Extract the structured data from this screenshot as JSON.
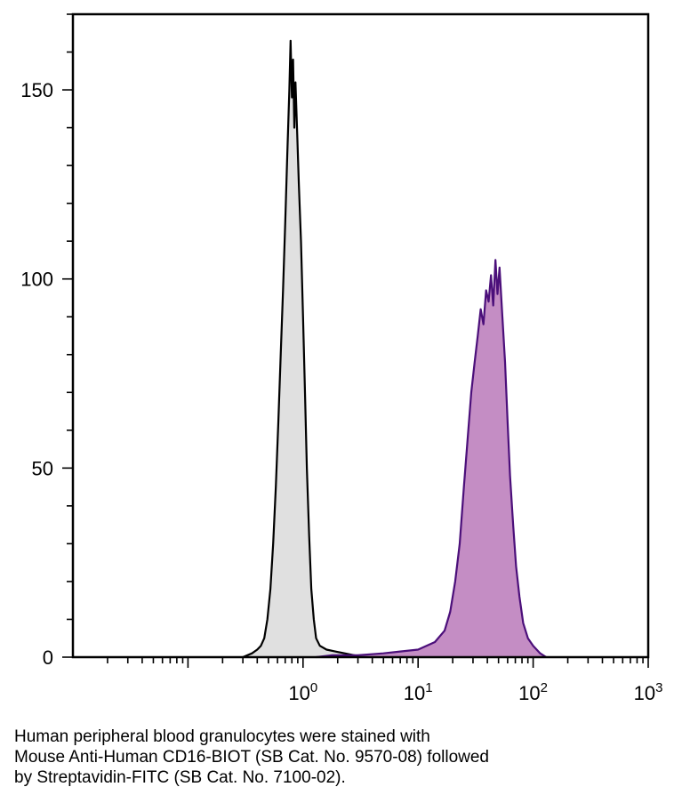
{
  "chart_data": {
    "type": "area",
    "title": "",
    "xlabel": "",
    "ylabel": "",
    "x_scale": "log",
    "xlim": [
      0.01,
      1000
    ],
    "ylim": [
      0,
      170
    ],
    "grid": false,
    "x_ticks": [
      {
        "value": 1,
        "base": "10",
        "exp": "0"
      },
      {
        "value": 10,
        "base": "10",
        "exp": "1"
      },
      {
        "value": 100,
        "base": "10",
        "exp": "2"
      },
      {
        "value": 1000,
        "base": "10",
        "exp": "3"
      }
    ],
    "y_ticks": [
      {
        "value": 0,
        "label": "0"
      },
      {
        "value": 50,
        "label": "50"
      },
      {
        "value": 100,
        "label": "100"
      },
      {
        "value": 150,
        "label": "150"
      }
    ],
    "series": [
      {
        "fill": "#e0e0e0",
        "stroke": "#000000",
        "points": [
          [
            0.3,
            0
          ],
          [
            0.36,
            1
          ],
          [
            0.4,
            2
          ],
          [
            0.43,
            3
          ],
          [
            0.46,
            5
          ],
          [
            0.49,
            10
          ],
          [
            0.52,
            18
          ],
          [
            0.55,
            30
          ],
          [
            0.58,
            45
          ],
          [
            0.61,
            62
          ],
          [
            0.64,
            80
          ],
          [
            0.67,
            97
          ],
          [
            0.7,
            115
          ],
          [
            0.73,
            133
          ],
          [
            0.76,
            150
          ],
          [
            0.78,
            163
          ],
          [
            0.8,
            148
          ],
          [
            0.82,
            158
          ],
          [
            0.84,
            140
          ],
          [
            0.86,
            152
          ],
          [
            0.89,
            138
          ],
          [
            0.92,
            125
          ],
          [
            0.96,
            110
          ],
          [
            1.0,
            90
          ],
          [
            1.04,
            70
          ],
          [
            1.08,
            50
          ],
          [
            1.13,
            32
          ],
          [
            1.18,
            18
          ],
          [
            1.24,
            10
          ],
          [
            1.3,
            5
          ],
          [
            1.4,
            3
          ],
          [
            1.6,
            2
          ],
          [
            1.9,
            1.5
          ],
          [
            2.3,
            1
          ],
          [
            2.8,
            0.5
          ],
          [
            3.2,
            0
          ]
        ]
      },
      {
        "fill": "#c48dc4",
        "stroke": "#4b0f7a",
        "points": [
          [
            1.3,
            0
          ],
          [
            1.8,
            0.5
          ],
          [
            3,
            0.5
          ],
          [
            5,
            1
          ],
          [
            7,
            1.5
          ],
          [
            10,
            2
          ],
          [
            14,
            4
          ],
          [
            17,
            7
          ],
          [
            19,
            12
          ],
          [
            21,
            20
          ],
          [
            23,
            30
          ],
          [
            25,
            45
          ],
          [
            27,
            58
          ],
          [
            29,
            70
          ],
          [
            31,
            78
          ],
          [
            33,
            85
          ],
          [
            35,
            92
          ],
          [
            37,
            88
          ],
          [
            39,
            97
          ],
          [
            41,
            94
          ],
          [
            43,
            101
          ],
          [
            45,
            93
          ],
          [
            47,
            105
          ],
          [
            49,
            96
          ],
          [
            51,
            103
          ],
          [
            54,
            90
          ],
          [
            57,
            78
          ],
          [
            60,
            62
          ],
          [
            63,
            48
          ],
          [
            67,
            35
          ],
          [
            71,
            24
          ],
          [
            76,
            16
          ],
          [
            82,
            9
          ],
          [
            90,
            5
          ],
          [
            100,
            3
          ],
          [
            115,
            1
          ],
          [
            130,
            0
          ]
        ]
      }
    ]
  },
  "caption": {
    "lines": [
      "Human peripheral blood granulocytes were stained with",
      "Mouse Anti-Human CD16-BIOT (SB Cat. No. 9570-08) followed",
      "by Streptavidin-FITC (SB Cat. No. 7100-02)."
    ]
  }
}
